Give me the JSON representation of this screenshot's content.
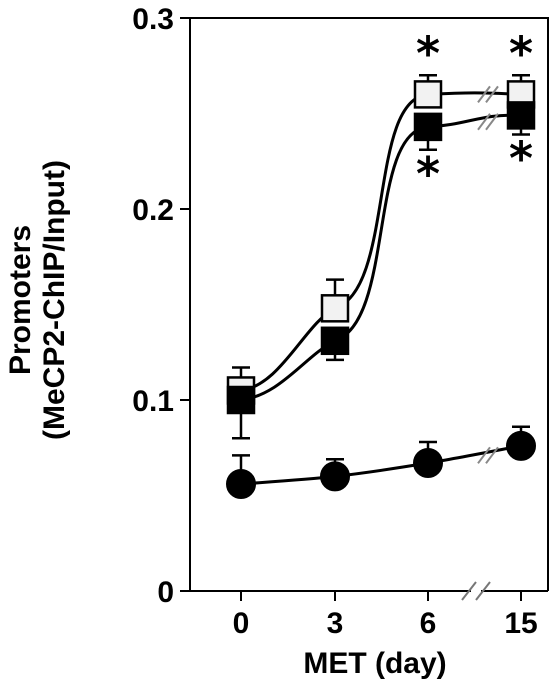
{
  "chart_data": {
    "type": "line",
    "title": "",
    "xlabel": "MET (day)",
    "ylabel": [
      "Promoters",
      "(MeCP2-ChIP/Input)"
    ],
    "x_ticks": [
      "0",
      "3",
      "6",
      "15"
    ],
    "x_axis_break": true,
    "ylim": [
      0,
      0.3
    ],
    "y_ticks": [
      {
        "value": 0,
        "label": "0"
      },
      {
        "value": 0.1,
        "label": "0.1"
      },
      {
        "value": 0.2,
        "label": "0.2"
      },
      {
        "value": 0.3,
        "label": "0.3"
      }
    ],
    "legend": "none",
    "grid": false,
    "series": [
      {
        "marker": "open-square",
        "color": "#f2f2f2",
        "values": [
          0.105,
          0.148,
          0.26,
          0.26
        ],
        "errors": [
          0.012,
          0.015,
          0.01,
          0.01
        ],
        "error_direction": "up",
        "significance": [
          "",
          "",
          "*",
          "*"
        ],
        "significance_position": "above"
      },
      {
        "marker": "filled-square",
        "color": "#000000",
        "values": [
          0.1,
          0.131,
          0.243,
          0.249
        ],
        "errors": [
          0.02,
          0.01,
          0.012,
          0.01
        ],
        "error_direction": "down",
        "significance": [
          "",
          "",
          "*",
          "*"
        ],
        "significance_position": "below"
      },
      {
        "marker": "filled-circle",
        "color": "#000000",
        "values": [
          0.056,
          0.06,
          0.067,
          0.076
        ],
        "errors": [
          0.015,
          0.009,
          0.011,
          0.01
        ],
        "error_direction": "up",
        "significance": [
          "",
          "",
          "",
          ""
        ],
        "significance_position": "above"
      }
    ]
  }
}
